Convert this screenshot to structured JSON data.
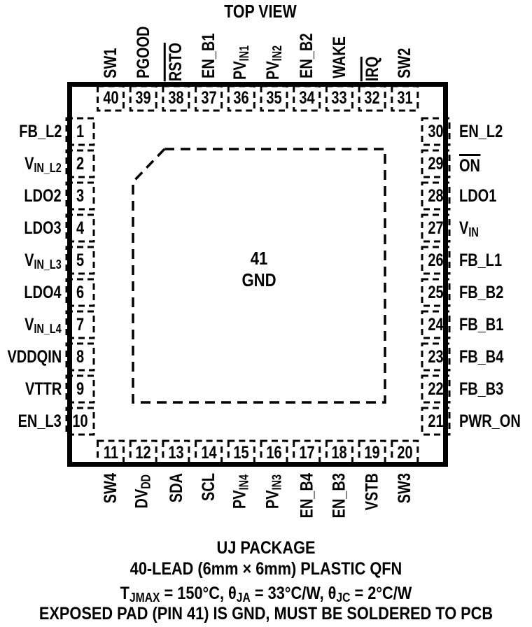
{
  "title": "TOP VIEW",
  "pad": {
    "number": "41",
    "name": "GND"
  },
  "pins": {
    "top": [
      {
        "num": "40",
        "label": [
          {
            "t": "SW1"
          }
        ]
      },
      {
        "num": "39",
        "label": [
          {
            "t": "PGOOD"
          }
        ]
      },
      {
        "num": "38",
        "label": [
          {
            "t": "RSTO",
            "o": true
          }
        ]
      },
      {
        "num": "37",
        "label": [
          {
            "t": "EN_B1"
          }
        ]
      },
      {
        "num": "36",
        "label": [
          {
            "t": "PV"
          },
          {
            "s": "IN1"
          }
        ]
      },
      {
        "num": "35",
        "label": [
          {
            "t": "PV"
          },
          {
            "s": "IN2"
          }
        ]
      },
      {
        "num": "34",
        "label": [
          {
            "t": "EN_B2"
          }
        ]
      },
      {
        "num": "33",
        "label": [
          {
            "t": "WAKE"
          }
        ]
      },
      {
        "num": "32",
        "label": [
          {
            "t": "IRQ",
            "o": true
          }
        ]
      },
      {
        "num": "31",
        "label": [
          {
            "t": "SW2"
          }
        ]
      }
    ],
    "left": [
      {
        "num": "1",
        "label": [
          {
            "t": "FB_L2"
          }
        ]
      },
      {
        "num": "2",
        "label": [
          {
            "t": "V"
          },
          {
            "s": "IN_L2"
          }
        ]
      },
      {
        "num": "3",
        "label": [
          {
            "t": "LDO2"
          }
        ]
      },
      {
        "num": "4",
        "label": [
          {
            "t": "LDO3"
          }
        ]
      },
      {
        "num": "5",
        "label": [
          {
            "t": "V"
          },
          {
            "s": "IN_L3"
          }
        ]
      },
      {
        "num": "6",
        "label": [
          {
            "t": "LDO4"
          }
        ]
      },
      {
        "num": "7",
        "label": [
          {
            "t": "V"
          },
          {
            "s": "IN_L4"
          }
        ]
      },
      {
        "num": "8",
        "label": [
          {
            "t": "VDDQIN"
          }
        ]
      },
      {
        "num": "9",
        "label": [
          {
            "t": "VTTR"
          }
        ]
      },
      {
        "num": "10",
        "label": [
          {
            "t": "EN_L3"
          }
        ]
      }
    ],
    "right": [
      {
        "num": "30",
        "label": [
          {
            "t": "EN_L2"
          }
        ]
      },
      {
        "num": "29",
        "label": [
          {
            "t": "ON",
            "o": true
          }
        ]
      },
      {
        "num": "28",
        "label": [
          {
            "t": "LDO1"
          }
        ]
      },
      {
        "num": "27",
        "label": [
          {
            "t": "V"
          },
          {
            "s": "IN"
          }
        ]
      },
      {
        "num": "26",
        "label": [
          {
            "t": "FB_L1"
          }
        ]
      },
      {
        "num": "25",
        "label": [
          {
            "t": "FB_B2"
          }
        ]
      },
      {
        "num": "24",
        "label": [
          {
            "t": "FB_B1"
          }
        ]
      },
      {
        "num": "23",
        "label": [
          {
            "t": "FB_B4"
          }
        ]
      },
      {
        "num": "22",
        "label": [
          {
            "t": "FB_B3"
          }
        ]
      },
      {
        "num": "21",
        "label": [
          {
            "t": "PWR_ON"
          }
        ]
      }
    ],
    "bottom": [
      {
        "num": "11",
        "label": [
          {
            "t": "SW4"
          }
        ]
      },
      {
        "num": "12",
        "label": [
          {
            "t": "DV"
          },
          {
            "s": "DD"
          }
        ]
      },
      {
        "num": "13",
        "label": [
          {
            "t": "SDA"
          }
        ]
      },
      {
        "num": "14",
        "label": [
          {
            "t": "SCL"
          }
        ]
      },
      {
        "num": "15",
        "label": [
          {
            "t": "PV"
          },
          {
            "s": "IN4"
          }
        ]
      },
      {
        "num": "16",
        "label": [
          {
            "t": "PV"
          },
          {
            "s": "IN3"
          }
        ]
      },
      {
        "num": "17",
        "label": [
          {
            "t": "EN_B4"
          }
        ]
      },
      {
        "num": "18",
        "label": [
          {
            "t": "EN_B3"
          }
        ]
      },
      {
        "num": "19",
        "label": [
          {
            "t": "VSTB"
          }
        ]
      },
      {
        "num": "20",
        "label": [
          {
            "t": "SW3"
          }
        ]
      }
    ]
  },
  "footer": {
    "line1": "UJ PACKAGE",
    "line2": "40-LEAD (6mm × 6mm) PLASTIC QFN",
    "line3": [
      {
        "t": "T"
      },
      {
        "s": "JMAX"
      },
      {
        "t": " = 150°C, θ"
      },
      {
        "s": "JA"
      },
      {
        "t": " = 33°C/W, θ"
      },
      {
        "s": "JC"
      },
      {
        "t": " = 2°C/W"
      }
    ],
    "line4": "EXPOSED PAD (PIN 41) IS GND, MUST BE SOLDERED TO PCB"
  },
  "colors": {
    "ink": "#000000",
    "background": "#ffffff"
  }
}
